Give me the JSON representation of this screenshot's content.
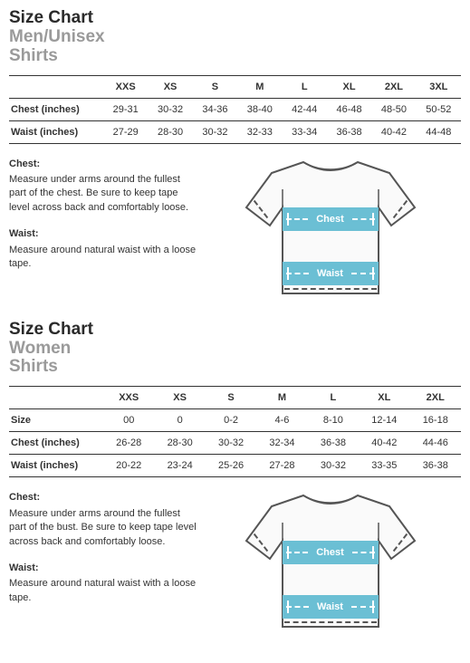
{
  "men": {
    "title_main": "Size Chart",
    "title_sub1": "Men/Unisex",
    "title_sub2": "Shirts",
    "headers": [
      "",
      "XXS",
      "XS",
      "S",
      "M",
      "L",
      "XL",
      "2XL",
      "3XL"
    ],
    "rows": [
      {
        "label": "Chest (inches)",
        "vals": [
          "29-31",
          "30-32",
          "34-36",
          "38-40",
          "42-44",
          "46-48",
          "48-50",
          "50-52"
        ]
      },
      {
        "label": "Waist (inches)",
        "vals": [
          "27-29",
          "28-30",
          "30-32",
          "32-33",
          "33-34",
          "36-38",
          "40-42",
          "44-48"
        ]
      }
    ],
    "chest_label": "Chest:",
    "chest_desc": "Measure under arms around the fullest part of the chest. Be sure to keep tape level across back and comfortably loose.",
    "waist_label": "Waist:",
    "waist_desc": "Measure around natural waist with a loose tape.",
    "band_chest": "Chest",
    "band_waist": "Waist"
  },
  "women": {
    "title_main": "Size Chart",
    "title_sub1": "Women",
    "title_sub2": "Shirts",
    "headers": [
      "",
      "XXS",
      "XS",
      "S",
      "M",
      "L",
      "XL",
      "2XL"
    ],
    "rows": [
      {
        "label": "Size",
        "vals": [
          "00",
          "0",
          "0-2",
          "4-6",
          "8-10",
          "12-14",
          "16-18"
        ]
      },
      {
        "label": "Chest (inches)",
        "vals": [
          "26-28",
          "28-30",
          "30-32",
          "32-34",
          "36-38",
          "40-42",
          "44-46"
        ]
      },
      {
        "label": "Waist (inches)",
        "vals": [
          "20-22",
          "23-24",
          "25-26",
          "27-28",
          "30-32",
          "33-35",
          "36-38"
        ]
      }
    ],
    "chest_label": "Chest:",
    "chest_desc": "Measure under arms around the fullest part of the bust. Be sure to keep tape level across back and comfortably loose.",
    "waist_label": "Waist:",
    "waist_desc": "Measure around natural waist with a loose tape.",
    "band_chest": "Chest",
    "band_waist": "Waist"
  },
  "colors": {
    "band": "#6bbfd4",
    "shirt_stroke": "#555"
  }
}
